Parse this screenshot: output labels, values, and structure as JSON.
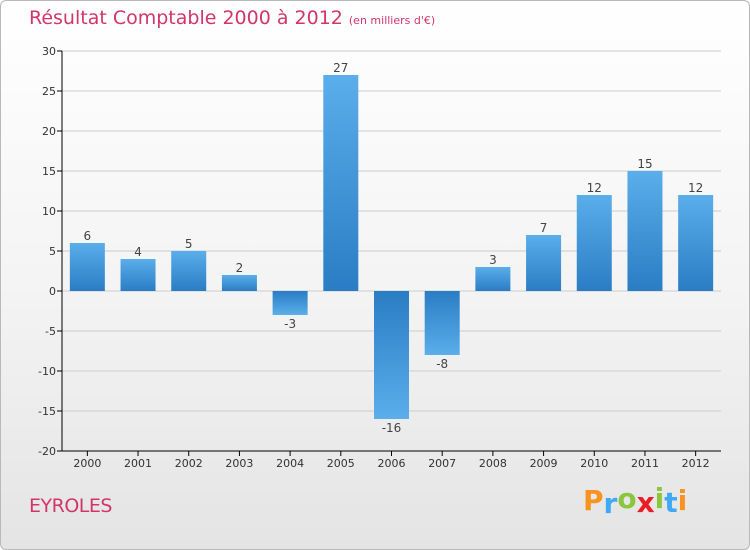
{
  "header": {
    "title": "Résultat Comptable 2000 à 2012",
    "subtitle": "(en milliers d'€)"
  },
  "footer": {
    "commune": "EYROLES",
    "brand": "Proxiti",
    "brand_colors": [
      "#f7931e",
      "#3fa9f5",
      "#8cc63f",
      "#ed1c24",
      "#8cc63f",
      "#3fa9f5",
      "#f7931e"
    ]
  },
  "colors": {
    "title": "#d2356c",
    "bar_light": "#5aaeea",
    "bar_dark": "#2a7dc4",
    "grid": "#cccccc",
    "axis": "#000000"
  },
  "chart_data": {
    "type": "bar",
    "title": "Résultat Comptable 2000 à 2012",
    "subtitle": "(en milliers d'€)",
    "xlabel": "",
    "ylabel": "",
    "categories": [
      "2000",
      "2001",
      "2002",
      "2003",
      "2004",
      "2005",
      "2006",
      "2007",
      "2008",
      "2009",
      "2010",
      "2011",
      "2012"
    ],
    "values": [
      6,
      4,
      5,
      2,
      -3,
      27,
      -16,
      -8,
      3,
      7,
      12,
      15,
      12
    ],
    "ylim": [
      -20,
      30
    ],
    "yticks": [
      -20,
      -15,
      -10,
      -5,
      0,
      5,
      10,
      15,
      20,
      25,
      30
    ],
    "grid": "horizontal",
    "legend": "none"
  }
}
